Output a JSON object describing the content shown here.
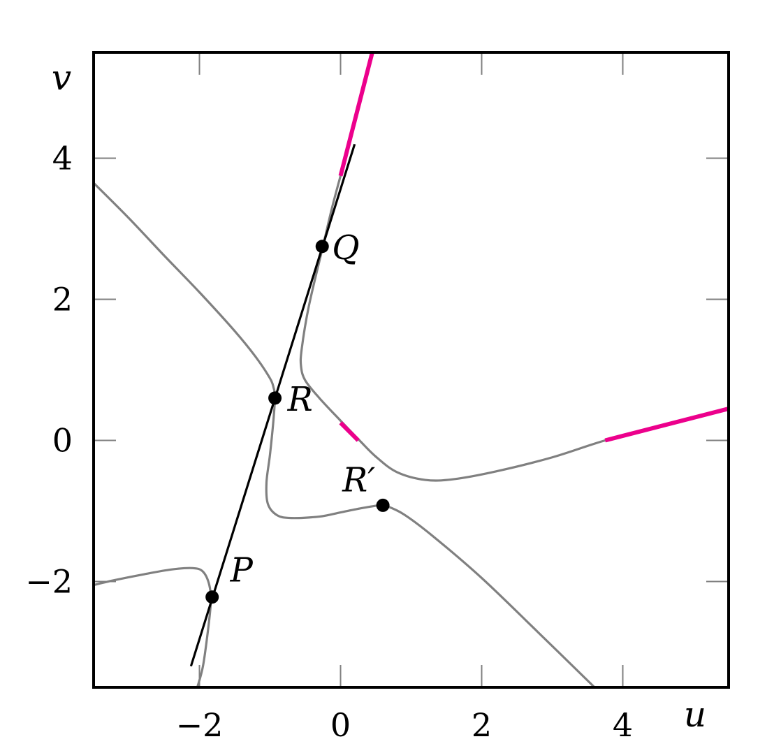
{
  "chart_data": {
    "type": "line",
    "title": "",
    "xlabel": "u",
    "ylabel": "v",
    "xlim": [
      -3.5,
      5.5
    ],
    "ylim": [
      -3.5,
      5.5
    ],
    "xticks": [
      -2,
      0,
      2,
      4
    ],
    "yticks": [
      -2,
      0,
      2,
      4
    ],
    "xtick_labels": [
      "−2",
      "0",
      "2",
      "4"
    ],
    "ytick_labels": [
      "−2",
      "0",
      "2",
      "4"
    ],
    "grid": false,
    "colors": {
      "curve": "#808080",
      "line": "#000000",
      "highlight": "#ec008c",
      "frame": "#000000"
    },
    "series": [
      {
        "role": "curve-upper-left-branch",
        "points": [
          [
            -3.5,
            3.65
          ],
          [
            -3.0,
            3.15
          ],
          [
            -2.5,
            2.62
          ],
          [
            -2.0,
            2.1
          ],
          [
            -1.5,
            1.55
          ],
          [
            -1.2,
            1.18
          ],
          [
            -1.0,
            0.88
          ],
          [
            -0.95,
            0.75
          ],
          [
            -0.93,
            0.62
          ],
          [
            -0.95,
            0.3
          ],
          [
            -1.0,
            -0.2
          ],
          [
            -1.05,
            -0.6
          ],
          [
            -1.03,
            -0.9
          ],
          [
            -0.9,
            -1.06
          ],
          [
            -0.7,
            -1.1
          ],
          [
            -0.3,
            -1.08
          ],
          [
            0.0,
            -1.02
          ],
          [
            0.3,
            -0.96
          ],
          [
            0.55,
            -0.92
          ],
          [
            0.65,
            -0.93
          ],
          [
            0.9,
            -1.05
          ],
          [
            1.3,
            -1.35
          ],
          [
            2.0,
            -1.95
          ],
          [
            2.8,
            -2.72
          ],
          [
            3.6,
            -3.5
          ]
        ]
      },
      {
        "role": "curve-upper-right-branch",
        "points": [
          [
            0.0,
            3.75
          ],
          [
            -0.12,
            3.3
          ],
          [
            -0.25,
            2.75
          ],
          [
            -0.45,
            1.9
          ],
          [
            -0.55,
            1.3
          ],
          [
            -0.56,
            1.05
          ],
          [
            -0.5,
            0.85
          ],
          [
            -0.3,
            0.6
          ],
          [
            0.0,
            0.28
          ],
          [
            0.25,
            0.02
          ],
          [
            0.5,
            -0.23
          ],
          [
            0.8,
            -0.45
          ],
          [
            1.2,
            -0.56
          ],
          [
            1.6,
            -0.55
          ],
          [
            2.2,
            -0.44
          ],
          [
            3.0,
            -0.24
          ],
          [
            3.75,
            0.0
          ],
          [
            4.6,
            0.22
          ],
          [
            5.5,
            0.45
          ]
        ]
      },
      {
        "role": "curve-lower-left-branch",
        "points": [
          [
            -3.5,
            -2.05
          ],
          [
            -3.2,
            -1.98
          ],
          [
            -2.8,
            -1.9
          ],
          [
            -2.4,
            -1.83
          ],
          [
            -2.1,
            -1.81
          ],
          [
            -1.95,
            -1.86
          ],
          [
            -1.86,
            -2.05
          ],
          [
            -1.84,
            -2.3
          ],
          [
            -1.88,
            -2.7
          ],
          [
            -1.95,
            -3.2
          ],
          [
            -2.03,
            -3.5
          ]
        ]
      },
      {
        "role": "secant-line",
        "points": [
          [
            -2.12,
            -3.2
          ],
          [
            0.2,
            4.2
          ]
        ]
      },
      {
        "role": "highlight",
        "points": [
          [
            0.0,
            3.75
          ],
          [
            0.45,
            5.5
          ]
        ]
      },
      {
        "role": "highlight",
        "points": [
          [
            0.0,
            0.25
          ],
          [
            0.25,
            0.0
          ]
        ]
      },
      {
        "role": "highlight",
        "points": [
          [
            3.75,
            0.0
          ],
          [
            5.5,
            0.45
          ]
        ]
      }
    ],
    "points": [
      {
        "label": "Q",
        "x": -0.26,
        "y": 2.75
      },
      {
        "label": "R",
        "x": -0.93,
        "y": 0.6
      },
      {
        "label": "R′",
        "x": 0.6,
        "y": -0.92
      },
      {
        "label": "P",
        "x": -1.82,
        "y": -2.22
      }
    ]
  }
}
